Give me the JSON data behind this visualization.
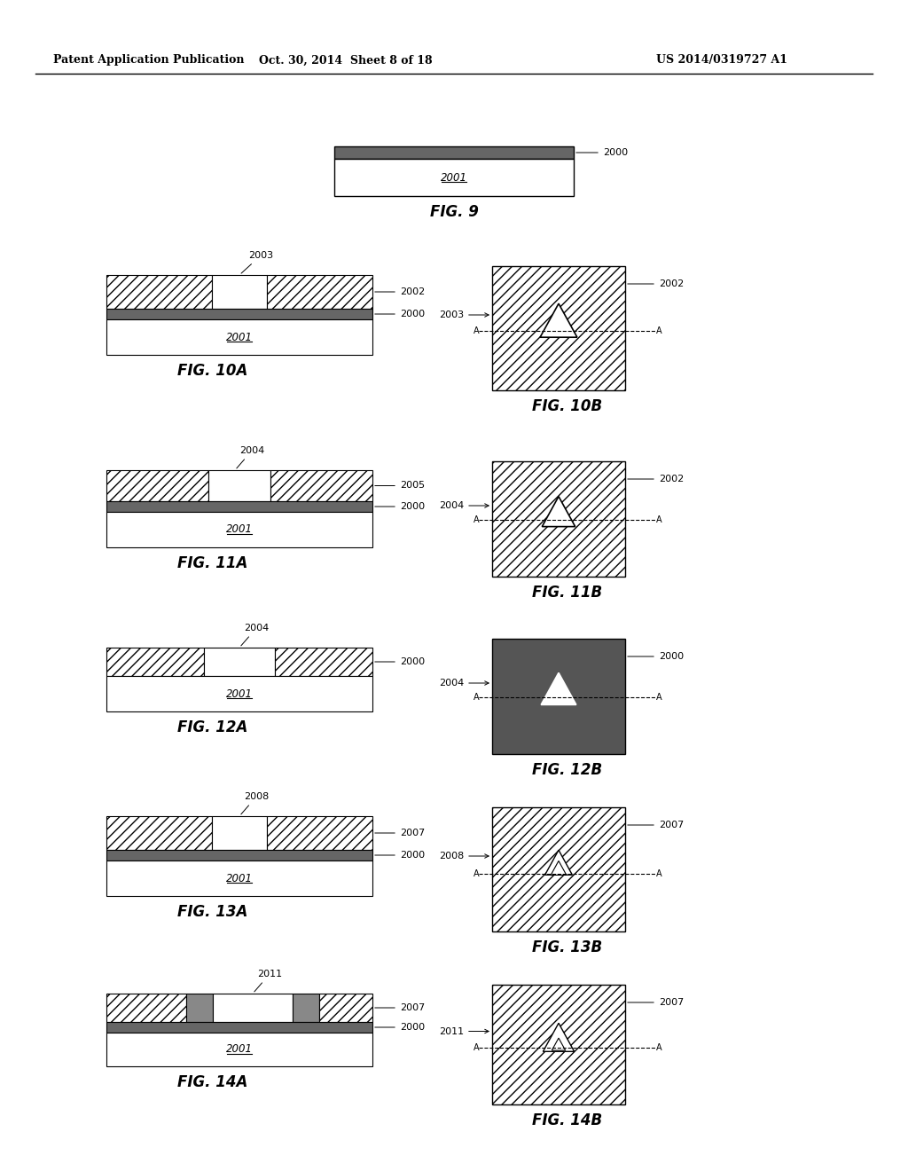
{
  "bg_color": "#ffffff",
  "header_left": "Patent Application Publication",
  "header_center": "Oct. 30, 2014  Sheet 8 of 18",
  "header_right": "US 2014/0319727 A1",
  "dark_gray": "#555555",
  "medium_gray": "#888888",
  "stripe_gray": "#666666"
}
